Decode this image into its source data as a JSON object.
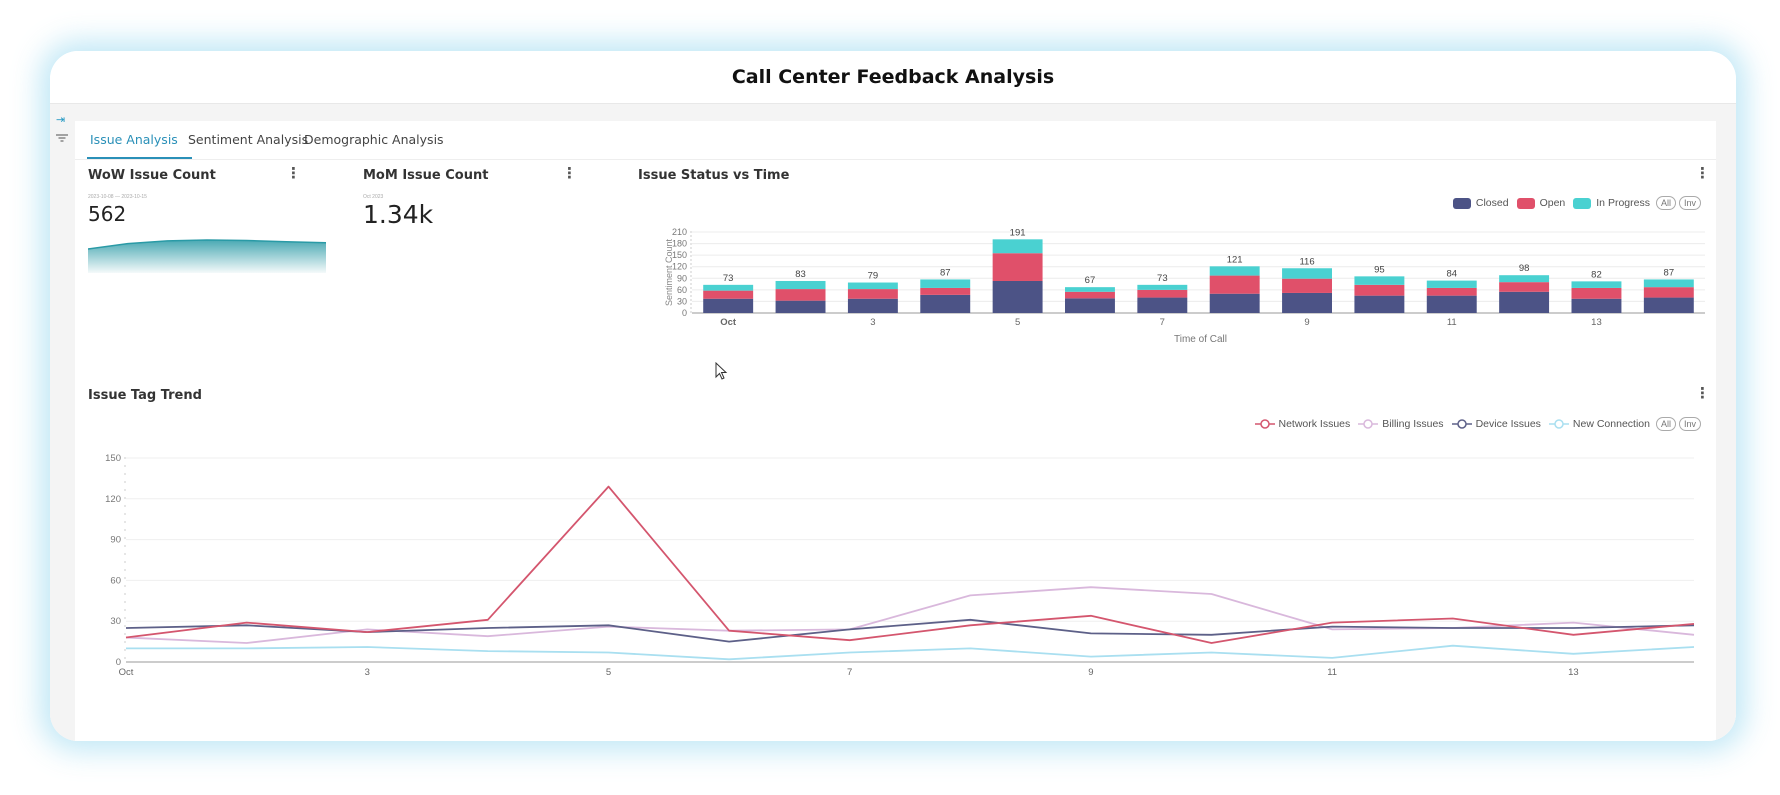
{
  "app": {
    "title": "Call Center Feedback Analysis"
  },
  "sidebar": {
    "icons": [
      "expand-icon",
      "filter-icon"
    ]
  },
  "tabs": [
    {
      "label": "Issue Analysis",
      "active": true
    },
    {
      "label": "Sentiment Analysis",
      "active": false
    },
    {
      "label": "Demographic Analysis",
      "active": false
    }
  ],
  "wow": {
    "title": "WoW Issue Count",
    "date_range": "2023-10-08 — 2023-10-15",
    "value": "562",
    "sparkline": [
      40,
      52,
      58,
      60,
      59,
      56,
      54
    ],
    "color": "#2a9aa6"
  },
  "mom": {
    "title": "MoM Issue Count",
    "subtitle": "Oct 2023",
    "value": "1.34k"
  },
  "status_chart": {
    "title": "Issue Status vs Time",
    "legend_all": "All",
    "legend_inv": "Inv",
    "chart_data": {
      "type": "bar",
      "stacked": true,
      "categories": [
        "Oct",
        "2",
        "3",
        "4",
        "5",
        "6",
        "7",
        "8",
        "9",
        "10",
        "11",
        "12",
        "13",
        "14"
      ],
      "tick_labels": [
        "Oct",
        "",
        "3",
        "",
        "5",
        "",
        "7",
        "",
        "9",
        "",
        "11",
        "",
        "13",
        ""
      ],
      "series": [
        {
          "name": "Closed",
          "color": "#4c5386",
          "values": [
            37,
            32,
            37,
            47,
            83,
            38,
            40,
            50,
            52,
            45,
            45,
            55,
            37,
            40
          ]
        },
        {
          "name": "Open",
          "color": "#e0506a",
          "values": [
            21,
            30,
            25,
            18,
            72,
            17,
            20,
            47,
            37,
            28,
            20,
            25,
            28,
            27
          ]
        },
        {
          "name": "In Progress",
          "color": "#4ad1d1",
          "values": [
            15,
            21,
            17,
            22,
            36,
            12,
            13,
            24,
            27,
            22,
            19,
            18,
            17,
            20
          ]
        }
      ],
      "totals": [
        73,
        83,
        79,
        87,
        191,
        67,
        73,
        121,
        116,
        95,
        84,
        98,
        82,
        87
      ],
      "xlabel": "Time of Call",
      "ylabel": "Sentiment Count",
      "ylim": [
        0,
        210
      ],
      "yticks": [
        0,
        30,
        60,
        90,
        120,
        150,
        180,
        210
      ],
      "legend": "top-right"
    }
  },
  "trend_chart": {
    "title": "Issue Tag Trend",
    "legend_all": "All",
    "legend_inv": "Inv",
    "chart_data": {
      "type": "line",
      "x": [
        "Oct",
        "2",
        "3",
        "4",
        "5",
        "6",
        "7",
        "8",
        "9",
        "10",
        "11",
        "12",
        "13",
        "14"
      ],
      "tick_labels": [
        "Oct",
        "",
        "3",
        "",
        "5",
        "",
        "7",
        "",
        "9",
        "",
        "11",
        "",
        "13",
        ""
      ],
      "series": [
        {
          "name": "Network Issues",
          "color": "#d4566e",
          "values": [
            18,
            29,
            22,
            31,
            129,
            23,
            16,
            27,
            34,
            14,
            29,
            32,
            20,
            28
          ]
        },
        {
          "name": "Billing Issues",
          "color": "#d9b8dc",
          "values": [
            18,
            14,
            24,
            19,
            26,
            23,
            24,
            49,
            55,
            50,
            24,
            25,
            29,
            20
          ]
        },
        {
          "name": "Device Issues",
          "color": "#5d6088",
          "values": [
            25,
            27,
            22,
            25,
            27,
            15,
            24,
            31,
            21,
            20,
            26,
            25,
            25,
            27
          ]
        },
        {
          "name": "New Connection",
          "color": "#a9dff0",
          "values": [
            10,
            10,
            11,
            8,
            7,
            2,
            7,
            10,
            4,
            7,
            3,
            12,
            6,
            11
          ]
        }
      ],
      "ylim": [
        0,
        150
      ],
      "yticks": [
        0,
        30,
        60,
        90,
        120,
        150
      ],
      "legend": "top-right"
    }
  }
}
